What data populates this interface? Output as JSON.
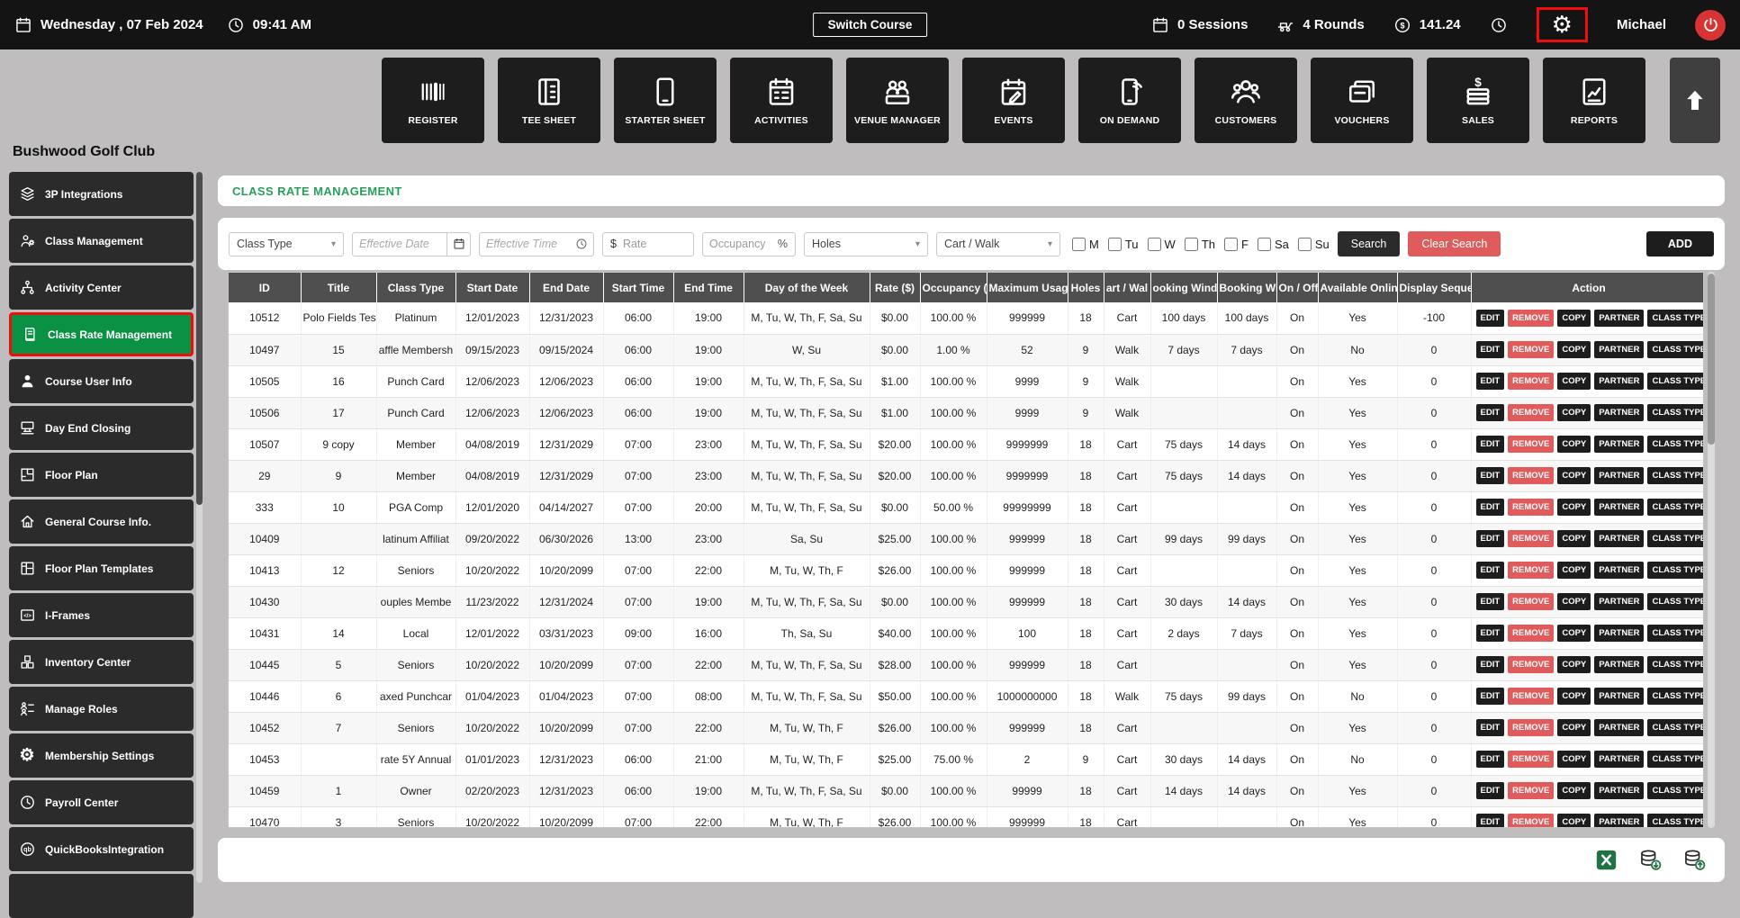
{
  "topbar": {
    "date": "Wednesday ,  07 Feb 2024",
    "time": "09:41 AM",
    "switch_course_label": "Switch Course",
    "sessions_label": "0 Sessions",
    "rounds_label": "4 Rounds",
    "amount": "141.24",
    "user_name": "Michael",
    "icons": {
      "date": "calendar-icon",
      "time": "clock-icon",
      "sessions": "calendar-icon",
      "rounds": "rounds-icon",
      "amount": "dollar-circle-icon",
      "secondary_clock": "clock-icon",
      "settings": "gear-icon",
      "power": "power-icon"
    }
  },
  "modules": [
    {
      "label": "REGISTER",
      "icon": "barcode-scanner-icon"
    },
    {
      "label": "TEE SHEET",
      "icon": "tee-sheet-icon"
    },
    {
      "label": "STARTER SHEET",
      "icon": "starter-sheet-icon"
    },
    {
      "label": "ACTIVITIES",
      "icon": "activities-icon"
    },
    {
      "label": "VENUE MANAGER",
      "icon": "venue-manager-icon"
    },
    {
      "label": "EVENTS",
      "icon": "events-icon"
    },
    {
      "label": "ON DEMAND",
      "icon": "on-demand-icon"
    },
    {
      "label": "CUSTOMERS",
      "icon": "customers-icon"
    },
    {
      "label": "VOUCHERS",
      "icon": "vouchers-icon"
    },
    {
      "label": "SALES",
      "icon": "sales-icon"
    },
    {
      "label": "REPORTS",
      "icon": "reports-icon"
    }
  ],
  "sidebar": {
    "title": "Bushwood Golf Club",
    "items": [
      {
        "label": "3P Integrations",
        "icon": "integrations-icon",
        "selected": false
      },
      {
        "label": "Class Management",
        "icon": "class-management-icon",
        "selected": false
      },
      {
        "label": "Activity Center",
        "icon": "activity-center-icon",
        "selected": false
      },
      {
        "label": "Class Rate Management",
        "icon": "class-rate-icon",
        "selected": true
      },
      {
        "label": "Course User Info",
        "icon": "user-icon",
        "selected": false
      },
      {
        "label": "Day End Closing",
        "icon": "day-end-icon",
        "selected": false
      },
      {
        "label": "Floor Plan",
        "icon": "floor-plan-icon",
        "selected": false
      },
      {
        "label": "General Course Info.",
        "icon": "home-icon",
        "selected": false
      },
      {
        "label": "Floor Plan Templates",
        "icon": "floor-plan-templates-icon",
        "selected": false
      },
      {
        "label": "I-Frames",
        "icon": "iframe-icon",
        "selected": false
      },
      {
        "label": "Inventory Center",
        "icon": "inventory-icon",
        "selected": false
      },
      {
        "label": "Manage Roles",
        "icon": "roles-icon",
        "selected": false
      },
      {
        "label": "Membership Settings",
        "icon": "gear-small-icon",
        "selected": false
      },
      {
        "label": "Payroll Center",
        "icon": "payroll-icon",
        "selected": false
      },
      {
        "label": "QuickBooksIntegration",
        "icon": "quickbooks-icon",
        "selected": false
      }
    ]
  },
  "page": {
    "title": "CLASS RATE MANAGEMENT"
  },
  "filters": {
    "class_type_value": "Class Type",
    "effective_date_placeholder": "Effective Date",
    "effective_time_placeholder": "Effective Time",
    "rate_prefix": "$",
    "rate_placeholder": "Rate",
    "occupancy_placeholder": "Occupancy",
    "occupancy_suffix": "%",
    "holes_value": "Holes",
    "cart_walk_value": "Cart / Walk",
    "days": [
      "M",
      "Tu",
      "W",
      "Th",
      "F",
      "Sa",
      "Su"
    ],
    "search_label": "Search",
    "clear_search_label": "Clear Search",
    "add_label": "ADD"
  },
  "table": {
    "headers": [
      "ID",
      "Title",
      "Class Type",
      "Start Date",
      "End Date",
      "Start Time",
      "End Time",
      "Day of the Week",
      "Rate ($)",
      "Occupancy (%)",
      "Maximum Usag",
      "Holes",
      "art / Wal",
      "ooking Windo",
      "Booking Win",
      "On / Off",
      "Available Onlin",
      "Display Sequen",
      "Action"
    ],
    "action_labels": [
      "EDIT",
      "REMOVE",
      "COPY",
      "PARTNER",
      "CLASS TYPE"
    ],
    "rows": [
      [
        "10512",
        "Polo Fields Test",
        "Platinum",
        "12/01/2023",
        "12/31/2023",
        "06:00",
        "19:00",
        "M, Tu, W, Th, F, Sa, Su",
        "$0.00",
        "100.00 %",
        "999999",
        "18",
        "Cart",
        "100 days",
        "100 days",
        "On",
        "Yes",
        "-100"
      ],
      [
        "10497",
        "15",
        "affle Membersh",
        "09/15/2023",
        "09/15/2024",
        "06:00",
        "19:00",
        "W, Su",
        "$0.00",
        "1.00 %",
        "52",
        "9",
        "Walk",
        "7 days",
        "7 days",
        "On",
        "No",
        "0"
      ],
      [
        "10505",
        "16",
        "Punch Card",
        "12/06/2023",
        "12/06/2023",
        "06:00",
        "19:00",
        "M, Tu, W, Th, F, Sa, Su",
        "$1.00",
        "100.00 %",
        "9999",
        "9",
        "Walk",
        "",
        "",
        "On",
        "Yes",
        "0"
      ],
      [
        "10506",
        "17",
        "Punch Card",
        "12/06/2023",
        "12/06/2023",
        "06:00",
        "19:00",
        "M, Tu, W, Th, F, Sa, Su",
        "$1.00",
        "100.00 %",
        "9999",
        "9",
        "Walk",
        "",
        "",
        "On",
        "Yes",
        "0"
      ],
      [
        "10507",
        "9 copy",
        "Member",
        "04/08/2019",
        "12/31/2029",
        "07:00",
        "23:00",
        "M, Tu, W, Th, F, Sa, Su",
        "$20.00",
        "100.00 %",
        "9999999",
        "18",
        "Cart",
        "75 days",
        "14 days",
        "On",
        "Yes",
        "0"
      ],
      [
        "29",
        "9",
        "Member",
        "04/08/2019",
        "12/31/2029",
        "07:00",
        "23:00",
        "M, Tu, W, Th, F, Sa, Su",
        "$20.00",
        "100.00 %",
        "9999999",
        "18",
        "Cart",
        "75 days",
        "14 days",
        "On",
        "Yes",
        "0"
      ],
      [
        "333",
        "10",
        "PGA Comp",
        "12/01/2020",
        "04/14/2027",
        "07:00",
        "20:00",
        "M, Tu, W, Th, F, Sa, Su",
        "$0.00",
        "50.00 %",
        "99999999",
        "18",
        "Cart",
        "",
        "",
        "On",
        "Yes",
        "0"
      ],
      [
        "10409",
        "",
        "latinum Affiliat",
        "09/20/2022",
        "06/30/2026",
        "13:00",
        "23:00",
        "Sa, Su",
        "$25.00",
        "100.00 %",
        "999999",
        "18",
        "Cart",
        "99 days",
        "99 days",
        "On",
        "Yes",
        "0"
      ],
      [
        "10413",
        "12",
        "Seniors",
        "10/20/2022",
        "10/20/2099",
        "07:00",
        "22:00",
        "M, Tu, W, Th, F",
        "$26.00",
        "100.00 %",
        "999999",
        "18",
        "Cart",
        "",
        "",
        "On",
        "Yes",
        "0"
      ],
      [
        "10430",
        "",
        "ouples Membe",
        "11/23/2022",
        "12/31/2024",
        "07:00",
        "19:00",
        "M, Tu, W, Th, F, Sa, Su",
        "$0.00",
        "100.00 %",
        "999999",
        "18",
        "Cart",
        "30 days",
        "14 days",
        "On",
        "Yes",
        "0"
      ],
      [
        "10431",
        "14",
        "Local",
        "12/01/2022",
        "03/31/2023",
        "09:00",
        "16:00",
        "Th, Sa, Su",
        "$40.00",
        "100.00 %",
        "100",
        "18",
        "Cart",
        "2 days",
        "7 days",
        "On",
        "Yes",
        "0"
      ],
      [
        "10445",
        "5",
        "Seniors",
        "10/20/2022",
        "10/20/2099",
        "07:00",
        "22:00",
        "M, Tu, W, Th, F, Sa, Su",
        "$28.00",
        "100.00 %",
        "999999",
        "18",
        "Cart",
        "",
        "",
        "On",
        "Yes",
        "0"
      ],
      [
        "10446",
        "6",
        "axed Punchcar",
        "01/04/2023",
        "01/04/2023",
        "07:00",
        "08:00",
        "M, Tu, W, Th, F, Sa, Su",
        "$50.00",
        "100.00 %",
        "1000000000",
        "18",
        "Walk",
        "75 days",
        "99 days",
        "On",
        "No",
        "0"
      ],
      [
        "10452",
        "7",
        "Seniors",
        "10/20/2022",
        "10/20/2099",
        "07:00",
        "22:00",
        "M, Tu, W, Th, F",
        "$26.00",
        "100.00 %",
        "999999",
        "18",
        "Cart",
        "",
        "",
        "On",
        "Yes",
        "0"
      ],
      [
        "10453",
        "",
        "rate 5Y Annual",
        "01/01/2023",
        "12/31/2023",
        "06:00",
        "21:00",
        "M, Tu, W, Th, F",
        "$25.00",
        "75.00 %",
        "2",
        "9",
        "Cart",
        "30 days",
        "14 days",
        "On",
        "No",
        "0"
      ],
      [
        "10459",
        "1",
        "Owner",
        "02/20/2023",
        "12/31/2023",
        "06:00",
        "19:00",
        "M, Tu, W, Th, F, Sa, Su",
        "$0.00",
        "100.00 %",
        "99999",
        "18",
        "Cart",
        "14 days",
        "14 days",
        "On",
        "Yes",
        "0"
      ],
      [
        "10470",
        "3",
        "Seniors",
        "10/20/2022",
        "10/20/2099",
        "07:00",
        "22:00",
        "M, Tu, W, Th, F",
        "$26.00",
        "100.00 %",
        "999999",
        "18",
        "Cart",
        "",
        "",
        "On",
        "Yes",
        "0"
      ]
    ]
  },
  "footer": {
    "export_icons": [
      "excel-export-icon",
      "coins-export-icon",
      "coins-export-alt-icon"
    ]
  },
  "colors": {
    "selected_green": "#0a9144",
    "title_green": "#28a05a",
    "danger_red": "#e05c5c",
    "highlight_red": "#f10d0d",
    "topbar_bg": "#141414",
    "dark_button": "#1d1d1d",
    "table_header_bg": "#4f4f4f"
  }
}
